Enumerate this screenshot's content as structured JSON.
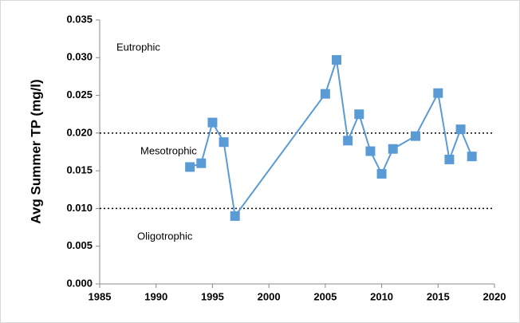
{
  "chart_data": {
    "type": "line",
    "y_label": "Avg Summer TP (mg/l)",
    "x": [
      1993,
      1994,
      1995,
      1996,
      1997,
      2005,
      2006,
      2007,
      2008,
      2009,
      2010,
      2011,
      2013,
      2015,
      2016,
      2017,
      2018
    ],
    "values": [
      0.0155,
      0.016,
      0.0214,
      0.0188,
      0.009,
      0.0252,
      0.0297,
      0.019,
      0.0225,
      0.0176,
      0.0146,
      0.0179,
      0.0196,
      0.0253,
      0.0165,
      0.0205,
      0.0169
    ],
    "color": "#5b9bd5",
    "xlim": [
      1985,
      2020
    ],
    "xticks": [
      1985,
      1990,
      1995,
      2000,
      2005,
      2010,
      2015,
      2020
    ],
    "ylim": [
      0,
      0.035
    ],
    "yticks": [
      {
        "value": 0,
        "label": "0.000"
      },
      {
        "value": 0.005,
        "label": "0.005"
      },
      {
        "value": 0.01,
        "label": "0.010"
      },
      {
        "value": 0.015,
        "label": "0.015"
      },
      {
        "value": 0.02,
        "label": "0.020"
      },
      {
        "value": 0.025,
        "label": "0.025"
      },
      {
        "value": 0.03,
        "label": "0.030"
      },
      {
        "value": 0.035,
        "label": "0.035"
      }
    ],
    "reference_lines": [
      0.01,
      0.02
    ],
    "annotations": [
      "Eutrophic",
      "Mesotrophic",
      "Oligotrophic"
    ]
  }
}
